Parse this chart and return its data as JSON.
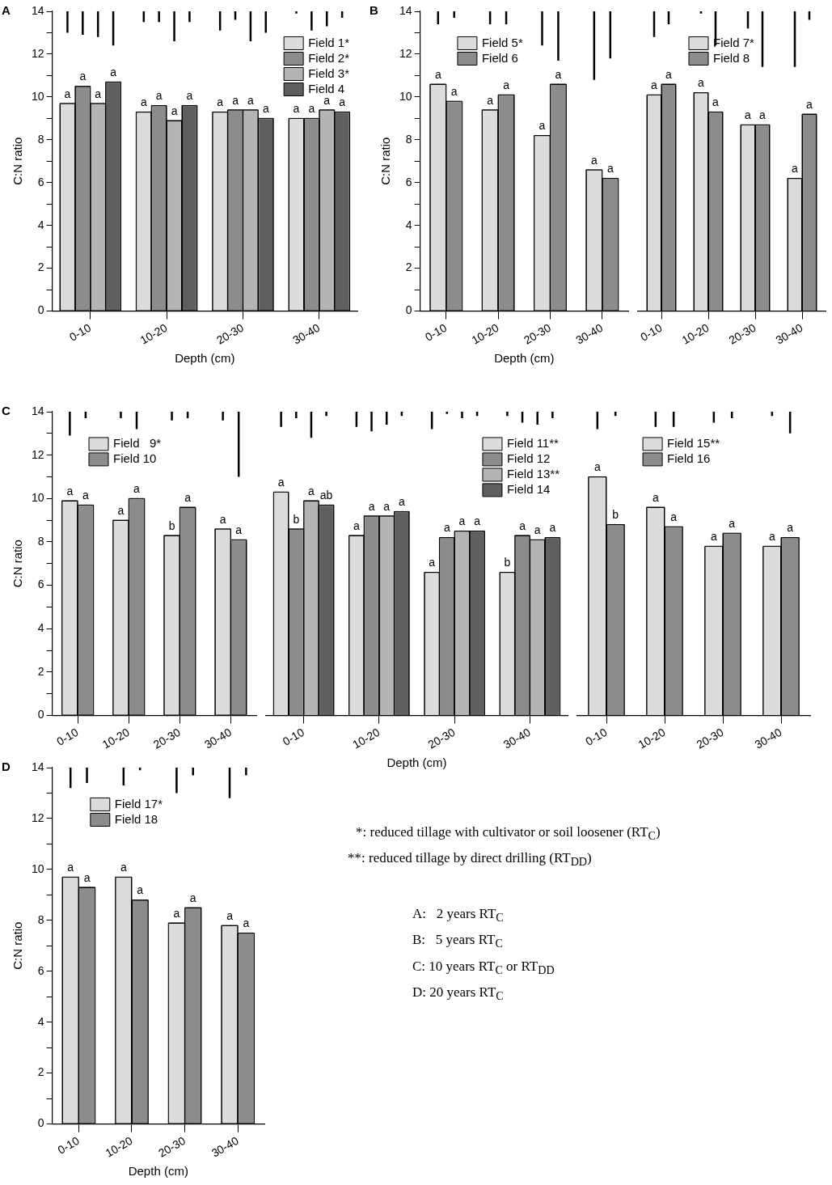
{
  "chart_data": [
    {
      "type": "bar",
      "title": "A",
      "categories": [
        "0-10",
        "10-20",
        "20-30",
        "30-40"
      ],
      "xlabel": "Depth (cm)",
      "ylabel": "C:N ratio",
      "ylim": [
        0,
        14
      ],
      "yticks": [
        0,
        {
          "value": 1,
          "label": null
        },
        2,
        {
          "value": 3,
          "label": null
        },
        4,
        {
          "value": 5,
          "label": null
        },
        6,
        {
          "value": 7,
          "label": null
        },
        8,
        {
          "value": 9,
          "label": null
        },
        10,
        {
          "value": 11,
          "label": null
        },
        12,
        {
          "value": 13,
          "label": null
        },
        14
      ],
      "legend": "top right",
      "series": [
        {
          "name": "Field 1*",
          "color": "#dcdcdc",
          "values": [
            9.7,
            9.3,
            9.3,
            9.0
          ],
          "value_labels": [
            "a",
            "a",
            "a",
            "a"
          ]
        },
        {
          "name": "Field 2*",
          "color": "#8c8c8c",
          "values": [
            10.5,
            9.6,
            9.4,
            9.0
          ],
          "value_labels": [
            "a",
            "a",
            "a",
            "a"
          ]
        },
        {
          "name": "Field 3*",
          "color": "#b4b4b4",
          "values": [
            9.7,
            8.9,
            9.4,
            9.4
          ],
          "value_labels": [
            "a",
            "a",
            "a",
            "a"
          ]
        },
        {
          "name": "Field 4",
          "color": "#5f5f5f",
          "values": [
            10.7,
            9.6,
            9.0,
            9.3
          ],
          "value_labels": [
            "a",
            "a",
            "a",
            "a"
          ]
        },
        {
          "color": "#000000",
          "base": [
            14,
            14,
            14,
            14
          ],
          "values": [
            -1.0,
            -0.5,
            -0.9,
            -0.1
          ]
        },
        {
          "color": "#000000",
          "base": [
            14,
            14,
            14,
            14
          ],
          "values": [
            -1.1,
            -0.5,
            -0.4,
            -0.9
          ]
        },
        {
          "color": "#000000",
          "base": [
            14,
            14,
            14,
            14
          ],
          "values": [
            -1.2,
            -1.4,
            -1.4,
            -0.7
          ]
        },
        {
          "color": "#000000",
          "base": [
            14,
            14,
            14,
            14
          ],
          "values": [
            -1.6,
            -0.5,
            -1.0,
            -0.3
          ]
        }
      ]
    },
    {
      "type": "bar",
      "title": "B",
      "categories": [
        "0-10",
        "10-20",
        "20-30",
        "30-40"
      ],
      "xlabel": "Depth (cm)",
      "ylabel": "C:N ratio",
      "ylim": [
        0,
        14
      ],
      "yticks": [
        0,
        {
          "value": 1,
          "label": null
        },
        2,
        {
          "value": 3,
          "label": null
        },
        4,
        {
          "value": 5,
          "label": null
        },
        6,
        {
          "value": 7,
          "label": null
        },
        8,
        {
          "value": 9,
          "label": null
        },
        10,
        {
          "value": 11,
          "label": null
        },
        12,
        {
          "value": 13,
          "label": null
        },
        14
      ],
      "legend": "top left",
      "series": [
        {
          "name": "Field 5*",
          "color": "#dcdcdc",
          "values": [
            10.6,
            9.4,
            8.2,
            6.6
          ],
          "value_labels": [
            "a",
            "a",
            "a",
            "a"
          ]
        },
        {
          "name": "Field 6",
          "color": "#8c8c8c",
          "values": [
            9.8,
            10.1,
            10.6,
            6.2
          ],
          "value_labels": [
            "a",
            "a",
            "a",
            "a"
          ]
        },
        {
          "color": "#000000",
          "base": [
            14,
            14,
            14,
            14
          ],
          "values": [
            -0.6,
            -0.6,
            -1.6,
            -3.2
          ]
        },
        {
          "color": "#000000",
          "base": [
            14,
            14,
            14,
            14
          ],
          "values": [
            -0.3,
            -0.6,
            -2.3,
            -2.2
          ]
        }
      ]
    },
    {
      "type": "bar",
      "categories": [
        "0-10",
        "10-20",
        "20-30",
        "30-40"
      ],
      "ylim": [
        0,
        14
      ],
      "tick_labels": "x",
      "legend": "top",
      "series": [
        {
          "name": "Field 7*",
          "color": "#dcdcdc",
          "values": [
            10.1,
            10.2,
            8.7,
            6.2
          ],
          "value_labels": [
            "a",
            "a",
            "a",
            "a"
          ]
        },
        {
          "name": "Field 8",
          "color": "#8c8c8c",
          "values": [
            10.6,
            9.3,
            8.7,
            9.2
          ],
          "value_labels": [
            "a",
            "a",
            "a",
            "a"
          ]
        },
        {
          "color": "#000000",
          "base": [
            14,
            14,
            14,
            14
          ],
          "values": [
            -1.2,
            -0.1,
            -0.8,
            -2.6
          ]
        },
        {
          "color": "#000000",
          "base": [
            14,
            14,
            14,
            14
          ],
          "values": [
            -0.6,
            -1.6,
            -2.6,
            -0.4
          ]
        }
      ]
    },
    {
      "type": "bar",
      "title": "C",
      "categories": [
        "0-10",
        "10-20",
        "20-30",
        "30-40"
      ],
      "ylabel": "C:N ratio",
      "ylim": [
        0,
        14
      ],
      "yticks": [
        0,
        {
          "value": 1,
          "label": null
        },
        2,
        {
          "value": 3,
          "label": null
        },
        4,
        {
          "value": 5,
          "label": null
        },
        6,
        {
          "value": 7,
          "label": null
        },
        8,
        {
          "value": 9,
          "label": null
        },
        10,
        {
          "value": 11,
          "label": null
        },
        12,
        {
          "value": 13,
          "label": null
        },
        14
      ],
      "legend": "top left",
      "series": [
        {
          "name": "Field   9*",
          "color": "#dcdcdc",
          "values": [
            9.9,
            9.0,
            8.3,
            8.6
          ],
          "value_labels": [
            "a",
            "a",
            "b",
            "a"
          ]
        },
        {
          "name": "Field 10",
          "color": "#8c8c8c",
          "values": [
            9.7,
            10.0,
            9.6,
            8.1
          ],
          "value_labels": [
            "a",
            "a",
            "a",
            "a"
          ]
        },
        {
          "color": "#000000",
          "base": [
            14,
            14,
            14,
            14
          ],
          "values": [
            -1.1,
            -0.3,
            -0.4,
            -0.4
          ]
        },
        {
          "color": "#000000",
          "base": [
            14,
            14,
            14,
            14
          ],
          "values": [
            -0.3,
            -0.8,
            -0.3,
            -3.0
          ]
        }
      ]
    },
    {
      "type": "bar",
      "categories": [
        "0-10",
        "10-20",
        "20-30",
        "30-40"
      ],
      "xlabel": "Depth (cm)",
      "ylim": [
        0,
        14
      ],
      "tick_labels": "x",
      "legend": "top right",
      "series": [
        {
          "name": "Field 11**",
          "color": "#dcdcdc",
          "values": [
            10.3,
            8.3,
            6.6,
            6.6
          ],
          "value_labels": [
            "a",
            "a",
            "a",
            "b"
          ]
        },
        {
          "name": "Field 12",
          "color": "#8c8c8c",
          "values": [
            8.6,
            9.2,
            8.2,
            8.3
          ],
          "value_labels": [
            "b",
            "a",
            "a",
            "a"
          ]
        },
        {
          "name": "Field 13**",
          "color": "#b4b4b4",
          "values": [
            9.9,
            9.2,
            8.5,
            8.1
          ],
          "value_labels": [
            "a",
            "a",
            "a",
            "a"
          ]
        },
        {
          "name": "Field 14",
          "color": "#5f5f5f",
          "values": [
            9.7,
            9.4,
            8.5,
            8.2
          ],
          "value_labels": [
            "ab",
            "a",
            "a",
            "a"
          ]
        },
        {
          "color": "#000000",
          "base": [
            14,
            14,
            14,
            14
          ],
          "values": [
            -0.7,
            -0.7,
            -0.8,
            -0.2
          ]
        },
        {
          "color": "#000000",
          "base": [
            14,
            14,
            14,
            14
          ],
          "values": [
            -0.3,
            -0.9,
            -0.1,
            -0.5
          ]
        },
        {
          "color": "#000000",
          "base": [
            14,
            14,
            14,
            14
          ],
          "values": [
            -1.2,
            -0.6,
            -0.3,
            -0.6
          ]
        },
        {
          "color": "#000000",
          "base": [
            14,
            14,
            14,
            14
          ],
          "values": [
            -0.2,
            -0.2,
            -0.2,
            -0.3
          ]
        }
      ]
    },
    {
      "type": "bar",
      "categories": [
        "0-10",
        "10-20",
        "20-30",
        "30-40"
      ],
      "ylim": [
        0,
        14
      ],
      "tick_labels": "x",
      "legend": "top",
      "series": [
        {
          "name": "Field 15**",
          "color": "#dcdcdc",
          "values": [
            11.0,
            9.6,
            7.8,
            7.8
          ],
          "value_labels": [
            "a",
            "a",
            "a",
            "a"
          ]
        },
        {
          "name": "Field 16",
          "color": "#8c8c8c",
          "values": [
            8.8,
            8.7,
            8.4,
            8.2
          ],
          "value_labels": [
            "b",
            "a",
            "a",
            "a"
          ]
        },
        {
          "color": "#000000",
          "base": [
            14,
            14,
            14,
            14
          ],
          "values": [
            -0.8,
            -0.7,
            -0.5,
            -0.2
          ]
        },
        {
          "color": "#000000",
          "base": [
            14,
            14,
            14,
            14
          ],
          "values": [
            -0.2,
            -0.7,
            -0.3,
            -1.0
          ]
        }
      ]
    },
    {
      "type": "bar",
      "title": "D",
      "categories": [
        "0-10",
        "10-20",
        "20-30",
        "30-40"
      ],
      "xlabel": "Depth (cm)",
      "ylabel": "C:N ratio",
      "ylim": [
        0,
        14
      ],
      "yticks": [
        0,
        {
          "value": 1,
          "label": null
        },
        2,
        {
          "value": 3,
          "label": null
        },
        4,
        {
          "value": 5,
          "label": null
        },
        6,
        {
          "value": 7,
          "label": null
        },
        8,
        {
          "value": 9,
          "label": null
        },
        10,
        {
          "value": 11,
          "label": null
        },
        12,
        {
          "value": 13,
          "label": null
        },
        14
      ],
      "legend": "top left",
      "series": [
        {
          "name": "Field 17*",
          "color": "#dcdcdc",
          "values": [
            9.7,
            9.7,
            7.9,
            7.8
          ],
          "value_labels": [
            "a",
            "a",
            "a",
            "a"
          ]
        },
        {
          "name": "Field 18",
          "color": "#8c8c8c",
          "values": [
            9.3,
            8.8,
            8.5,
            7.5
          ],
          "value_labels": [
            "a",
            "a",
            "a",
            "a"
          ]
        },
        {
          "color": "#000000",
          "base": [
            14,
            14,
            14,
            14
          ],
          "values": [
            -0.8,
            -0.7,
            -1.0,
            -1.2
          ]
        },
        {
          "color": "#000000",
          "base": [
            14,
            14,
            14,
            14
          ],
          "values": [
            -0.6,
            -0.1,
            -0.3,
            -0.3
          ]
        }
      ],
      "annotations": [
        "*: reduced tillage with cultivator or soil loosener (RT$_{C}$)",
        "**: reduced tillage by direct drilling (RT$_{DD}$)",
        "A:   2 years RT$_{C}$",
        "B:   5 years RT$_{C}$",
        "C: 10 years RT$_{C}$ or RT$_{DD}$",
        "D: 20 years RT$_{C}$"
      ]
    }
  ]
}
